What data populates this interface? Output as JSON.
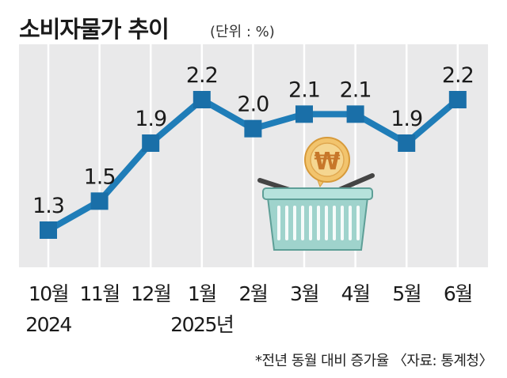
{
  "title": "소비자물가 추이",
  "unit": "(단위 : %)",
  "footnote": "*전년 동월 대비 증가율 〈자료: 통계청〉",
  "colors": {
    "line": "#1f7db8",
    "marker": "#1a6fa8",
    "plot_bg": "#e9e9ea",
    "basket": "#9fd3cc",
    "coin": "#f2c46d"
  },
  "chart_data": {
    "type": "line",
    "categories": [
      "10월",
      "11월",
      "12월",
      "1월",
      "2월",
      "3월",
      "4월",
      "5월",
      "6월"
    ],
    "year_labels": [
      "2024",
      "",
      "",
      "2025년",
      "",
      "",
      "",
      "",
      ""
    ],
    "values": [
      1.3,
      1.5,
      1.9,
      2.2,
      2.0,
      2.1,
      2.1,
      1.9,
      2.2
    ],
    "data_labels": [
      "1.3",
      "1.5",
      "1.9",
      "2.2",
      "2.0",
      "2.1",
      "2.1",
      "1.9",
      "2.2"
    ],
    "title": "소비자물가 추이",
    "xlabel": "",
    "ylabel": "",
    "grid": "vertical"
  },
  "illustration": {
    "basket_icon": "shopping-basket-icon",
    "coin_icon": "won-coin-icon",
    "coin_symbol": "₩"
  }
}
